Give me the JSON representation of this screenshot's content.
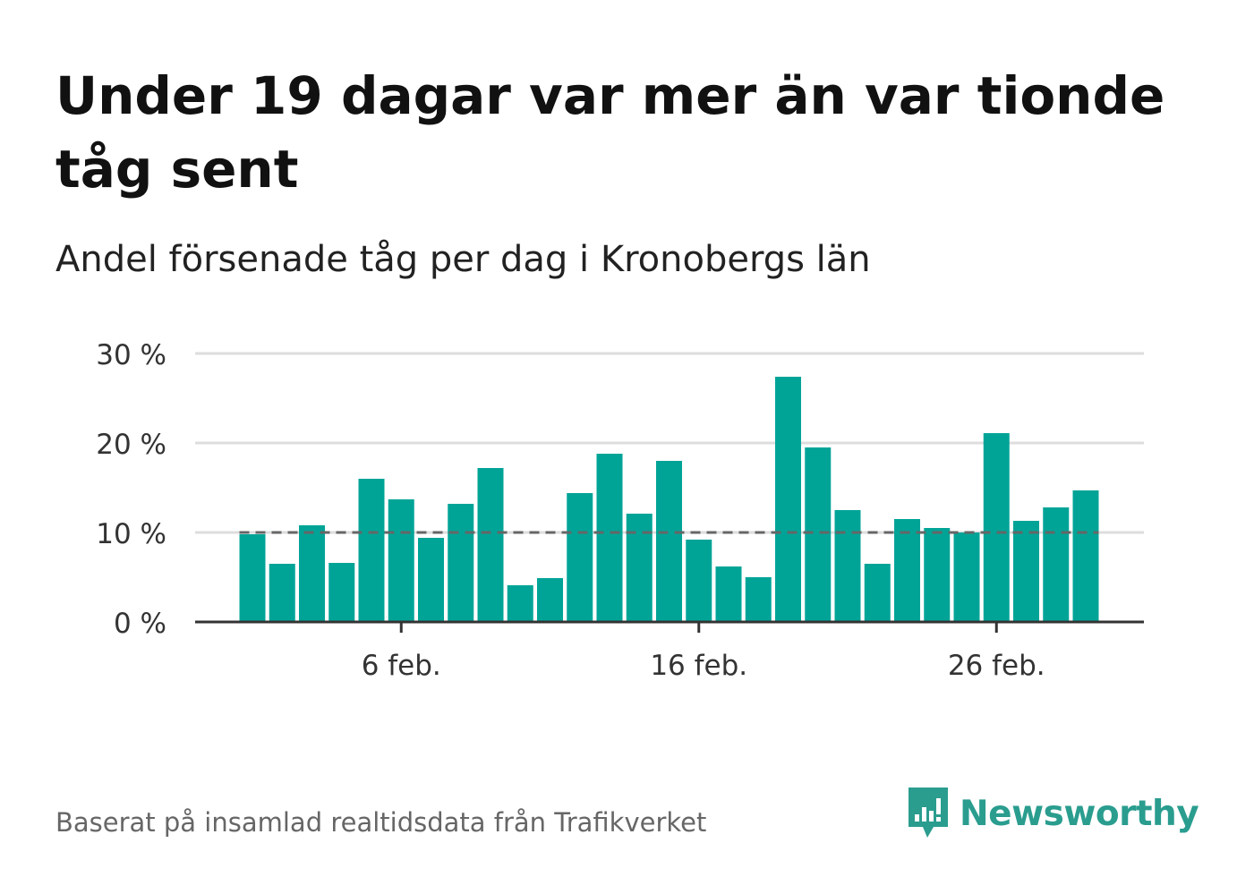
{
  "title": "Under 19 dagar var mer än var tionde tåg sent",
  "subtitle": "Andel försenade tåg per dag i Kronobergs län",
  "source": "Baserat på insamlad realtidsdata från Trafikverket",
  "brand": {
    "name": "Newsworthy",
    "color": "#2a9d8f"
  },
  "chart_data": {
    "type": "bar",
    "x": [
      "2023-02-01",
      "2023-02-02",
      "2023-02-03",
      "2023-02-04",
      "2023-02-05",
      "2023-02-06",
      "2023-02-07",
      "2023-02-08",
      "2023-02-09",
      "2023-02-10",
      "2023-02-11",
      "2023-02-12",
      "2023-02-13",
      "2023-02-14",
      "2023-02-15",
      "2023-02-16",
      "2023-02-17",
      "2023-02-18",
      "2023-02-19",
      "2023-02-20",
      "2023-02-21",
      "2023-02-22",
      "2023-02-23",
      "2023-02-24",
      "2023-02-25",
      "2023-02-26",
      "2023-02-27",
      "2023-02-28",
      "2023-03-01"
    ],
    "values": [
      9.8,
      6.5,
      10.8,
      6.6,
      16.0,
      13.7,
      9.4,
      13.2,
      17.2,
      4.1,
      4.9,
      14.4,
      18.8,
      12.1,
      18.0,
      9.2,
      6.2,
      5.0,
      27.4,
      19.5,
      12.5,
      6.5,
      11.5,
      10.5,
      10.0,
      21.1,
      11.3,
      12.8,
      14.7
    ],
    "reference_line": 10,
    "xticks": [
      "6 feb.",
      "16 feb.",
      "26 feb."
    ],
    "yticks": [
      "0 %",
      "10 %",
      "20 %",
      "30 %"
    ],
    "ylim": [
      0,
      30
    ],
    "grid": true,
    "colors": {
      "bar": "#00a497",
      "reference": "#666666",
      "grid": "#dddddd",
      "axis": "#333333"
    }
  }
}
